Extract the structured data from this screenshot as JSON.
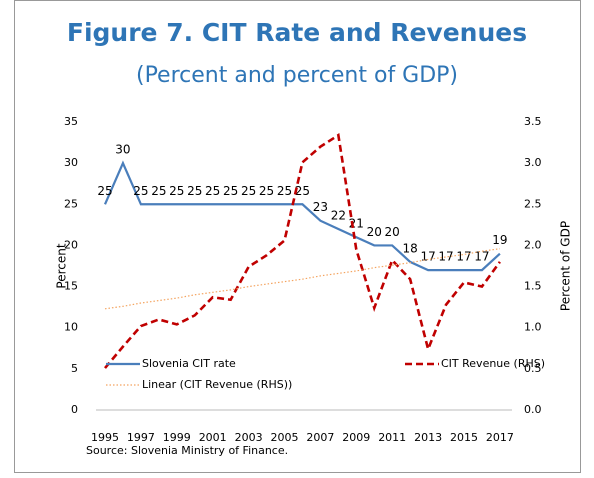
{
  "chart_data": {
    "type": "line",
    "title": "Figure 7. CIT Rate and Revenues",
    "subtitle": "(Percent and percent of GDP)",
    "y_label": "Percent",
    "y2_label": "Percent of GDP",
    "source": "Source: Slovenia Ministry of Finance.",
    "categories": [
      "1995",
      null,
      "1997",
      null,
      "1999",
      null,
      "2001",
      null,
      "2003",
      null,
      "2005",
      null,
      "2007",
      null,
      "2009",
      null,
      "2011",
      null,
      "2013",
      null,
      "2015",
      null,
      "2017"
    ],
    "ylim": [
      0,
      35
    ],
    "yticks": [
      0,
      5,
      10,
      15,
      20,
      25,
      30,
      35
    ],
    "y2lim": [
      0,
      3.5
    ],
    "y2ticks": [
      {
        "value": 0,
        "label": "0.0"
      },
      0.5,
      {
        "value": 1,
        "label": "1.0"
      },
      1.5,
      {
        "value": 2,
        "label": "2.0"
      },
      2.5,
      {
        "value": 3,
        "label": "3.0"
      },
      3.5
    ],
    "grid": false,
    "series": [
      {
        "name": "Slovenia CIT rate",
        "color": "#4a7ebb",
        "style": "solid",
        "data_labels": true,
        "values": [
          25,
          30,
          25,
          25,
          25,
          25,
          25,
          25,
          25,
          25,
          25,
          25,
          23,
          22,
          21,
          20,
          20,
          18,
          17,
          17,
          17,
          17,
          19
        ]
      },
      {
        "name": "CIT Revenue (RHS)",
        "color": "#c00000",
        "style": "dashed",
        "axis": "y2",
        "values": [
          0.51,
          0.77,
          1.02,
          1.1,
          1.04,
          1.15,
          1.37,
          1.34,
          1.74,
          1.88,
          2.06,
          3.01,
          3.2,
          3.34,
          1.95,
          1.24,
          1.82,
          1.59,
          0.74,
          1.28,
          1.55,
          1.5,
          1.8
        ]
      },
      {
        "name": "Linear (CIT Revenue (RHS))",
        "color": "#f4a460",
        "style": "dotted",
        "axis": "y2",
        "values": [
          1.23,
          1.26,
          1.3,
          1.33,
          1.36,
          1.4,
          1.43,
          1.46,
          1.5,
          1.53,
          1.56,
          1.59,
          1.63,
          1.66,
          1.69,
          1.73,
          1.76,
          1.79,
          1.83,
          1.86,
          1.89,
          1.93,
          1.96
        ]
      }
    ]
  }
}
